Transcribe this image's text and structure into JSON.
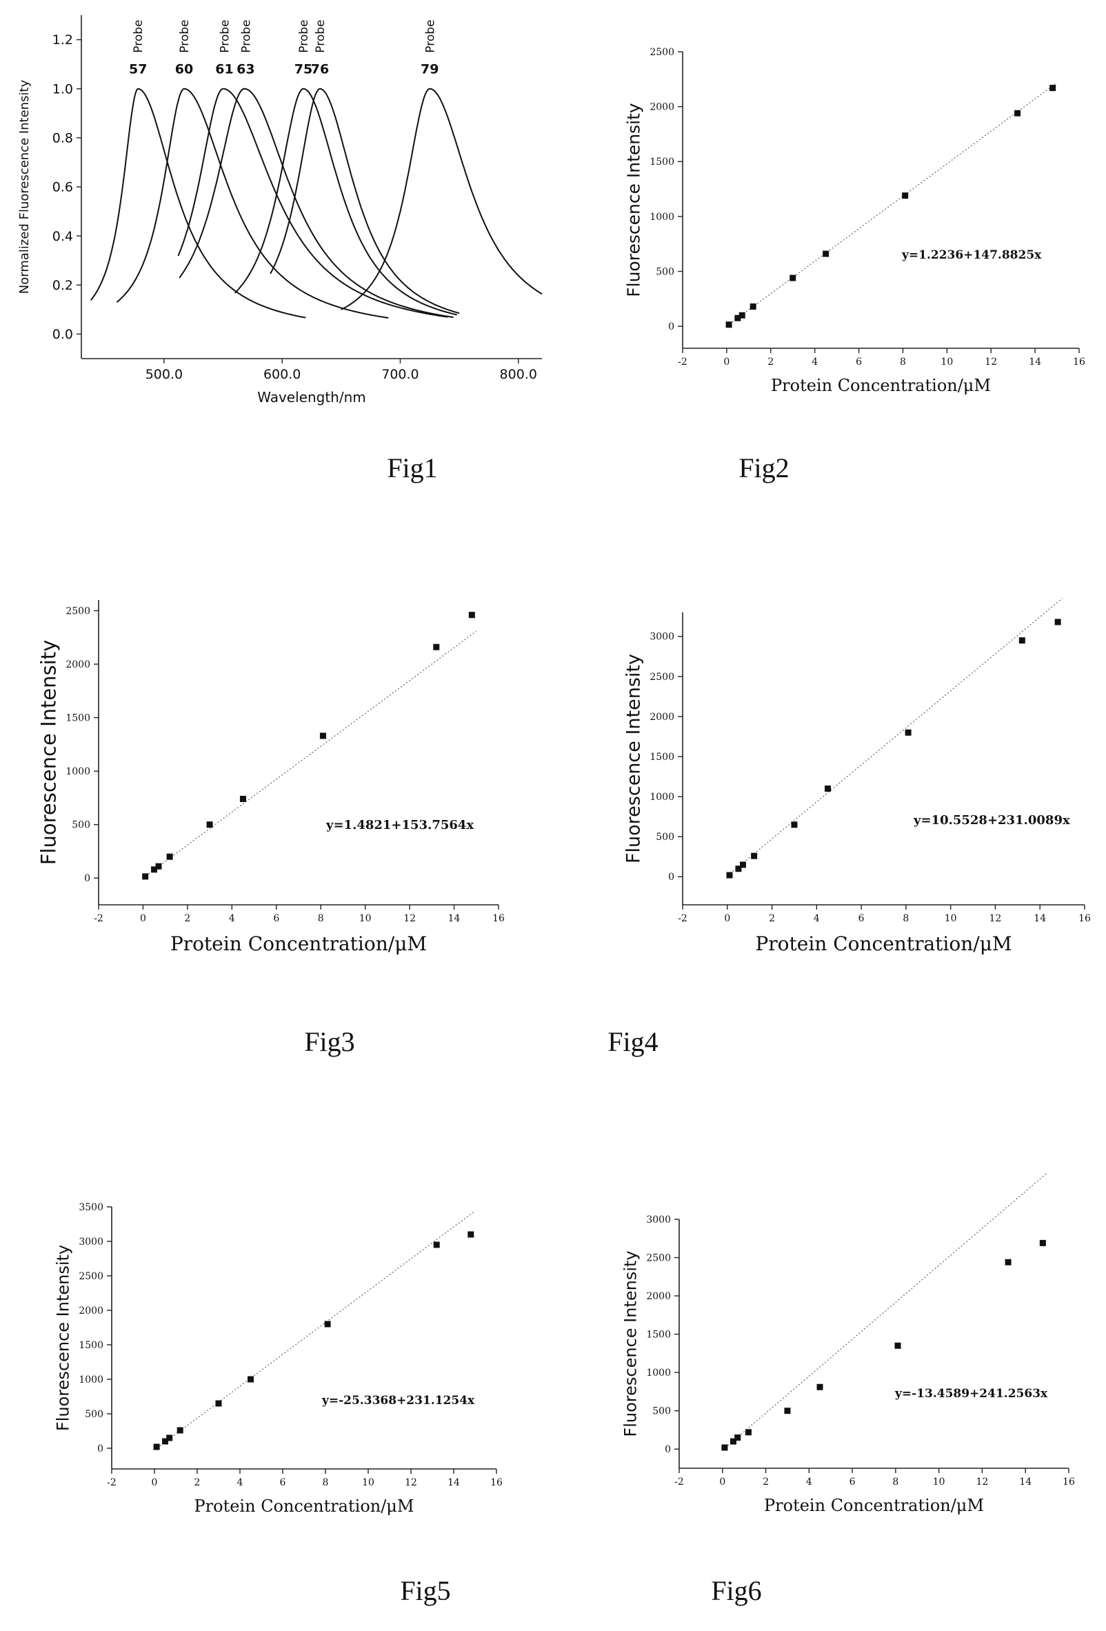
{
  "chart_data": [
    {
      "id": "fig1",
      "type": "line",
      "caption": "Fig1",
      "xlabel": "Wavelength/nm",
      "ylabel": "Normalized Fluorescence Intensity",
      "xlim": [
        430,
        820
      ],
      "ylim": [
        -0.1,
        1.3
      ],
      "xticks": [
        500,
        600,
        700,
        800
      ],
      "yticks": [
        0.0,
        0.2,
        0.4,
        0.6,
        0.8,
        1.0,
        1.2
      ],
      "grid": false,
      "series": [
        {
          "name": "57",
          "label_top": "Probe",
          "peak": 478,
          "left_w": 16,
          "right_w": 38,
          "x_start": 438,
          "x_end": 620
        },
        {
          "name": "60",
          "label_top": "Probe",
          "peak": 517,
          "left_w": 22,
          "right_w": 46,
          "x_start": 460,
          "x_end": 690
        },
        {
          "name": "61",
          "label_top": "Probe",
          "peak": 550,
          "left_w": 26,
          "right_w": 52,
          "x_start": 512,
          "x_end": 740
        },
        {
          "name": "63",
          "label_top": "Probe",
          "peak": 568,
          "left_w": 30,
          "right_w": 48,
          "x_start": 513,
          "x_end": 745
        },
        {
          "name": "75",
          "label_top": "Probe",
          "peak": 618,
          "left_w": 26,
          "right_w": 38,
          "x_start": 560,
          "x_end": 748
        },
        {
          "name": "76",
          "label_top": "Probe",
          "peak": 632,
          "left_w": 24,
          "right_w": 36,
          "x_start": 590,
          "x_end": 750
        },
        {
          "name": "79",
          "label_top": "Probe",
          "peak": 725,
          "left_w": 25,
          "right_w": 42,
          "x_start": 650,
          "x_end": 820
        }
      ]
    },
    {
      "id": "fig2",
      "type": "scatter",
      "caption": "Fig2",
      "xlabel": "Protein Concentration/μM",
      "ylabel": "Fluorescence Intensity",
      "xlim": [
        -2,
        16
      ],
      "ylim": [
        -200,
        2500
      ],
      "xticks": [
        -2,
        0,
        2,
        4,
        6,
        8,
        10,
        12,
        14,
        16
      ],
      "yticks": [
        0,
        500,
        1000,
        1500,
        2000,
        2500
      ],
      "equation": "y=1.2236+147.8825x",
      "fit": {
        "intercept": 1.2236,
        "slope": 147.8825,
        "x_start": 0,
        "x_end": 15
      },
      "x": [
        0.1,
        0.5,
        0.7,
        1.2,
        3.0,
        4.5,
        8.1,
        13.2,
        14.8
      ],
      "y": [
        15,
        75,
        100,
        180,
        440,
        660,
        1190,
        1940,
        2170
      ]
    },
    {
      "id": "fig3",
      "type": "scatter",
      "caption": "Fig3",
      "xlabel": "Protein Concentration/μM",
      "ylabel": "Fluorescence Intensity",
      "xlim": [
        -2,
        16
      ],
      "ylim": [
        -250,
        2600
      ],
      "xticks": [
        -2,
        0,
        2,
        4,
        6,
        8,
        10,
        12,
        14,
        16
      ],
      "yticks": [
        0,
        500,
        1000,
        1500,
        2000,
        2500
      ],
      "equation": "y=1.4821+153.7564x",
      "fit": {
        "intercept": 1.4821,
        "slope": 153.7564,
        "x_start": 0,
        "x_end": 15
      },
      "x": [
        0.1,
        0.5,
        0.7,
        1.2,
        3.0,
        4.5,
        8.1,
        13.2,
        14.8
      ],
      "y": [
        15,
        80,
        110,
        200,
        500,
        740,
        1330,
        2160,
        2460
      ]
    },
    {
      "id": "fig4",
      "type": "scatter",
      "caption": "Fig4",
      "xlabel": "Protein Concentration/μM",
      "ylabel": "Fluorescence Intensity",
      "xlim": [
        -2,
        16
      ],
      "ylim": [
        -350,
        3300
      ],
      "xticks": [
        -2,
        0,
        2,
        4,
        6,
        8,
        10,
        12,
        14,
        16
      ],
      "yticks": [
        0,
        500,
        1000,
        1500,
        2000,
        2500,
        3000
      ],
      "equation": "y=10.5528+231.0089x",
      "fit": {
        "intercept": 10.5528,
        "slope": 231.0089,
        "x_start": 0,
        "x_end": 15
      },
      "x": [
        0.1,
        0.5,
        0.7,
        1.2,
        3.0,
        4.5,
        8.1,
        13.2,
        14.8
      ],
      "y": [
        20,
        100,
        150,
        260,
        650,
        1100,
        1800,
        2950,
        3180
      ]
    },
    {
      "id": "fig5",
      "type": "scatter",
      "caption": "Fig5",
      "xlabel": "Protein Concentration/μM",
      "ylabel": "Fluorescence Intensity",
      "xlim": [
        -2,
        16
      ],
      "ylim": [
        -300,
        3500
      ],
      "xticks": [
        -2,
        0,
        2,
        4,
        6,
        8,
        10,
        12,
        14,
        16
      ],
      "yticks": [
        0,
        500,
        1000,
        1500,
        2000,
        2500,
        3000,
        3500
      ],
      "equation": "y=-25.3368+231.1254x",
      "fit": {
        "intercept": -25.3368,
        "slope": 231.1254,
        "x_start": 0,
        "x_end": 15
      },
      "x": [
        0.1,
        0.5,
        0.7,
        1.2,
        3.0,
        4.5,
        8.1,
        13.2,
        14.8
      ],
      "y": [
        20,
        100,
        150,
        260,
        650,
        1000,
        1800,
        2950,
        3100
      ]
    },
    {
      "id": "fig6",
      "type": "scatter",
      "caption": "Fig6",
      "xlabel": "Protein Concentration/μM",
      "ylabel": "Fluorescence Intensity",
      "xlim": [
        -2,
        16
      ],
      "ylim": [
        -250,
        3000
      ],
      "xticks": [
        -2,
        0,
        2,
        4,
        6,
        8,
        10,
        12,
        14,
        16
      ],
      "yticks": [
        0,
        500,
        1000,
        1500,
        2000,
        2500,
        3000
      ],
      "equation": "y=-13.4589+241.2563x",
      "fit": {
        "intercept": -13.4589,
        "slope": 241.2563,
        "x_start": 0,
        "x_end": 15
      },
      "x": [
        0.1,
        0.5,
        0.7,
        1.2,
        3.0,
        4.5,
        8.1,
        13.2,
        14.8
      ],
      "y": [
        20,
        100,
        150,
        220,
        500,
        810,
        1350,
        2440,
        2690
      ]
    }
  ]
}
